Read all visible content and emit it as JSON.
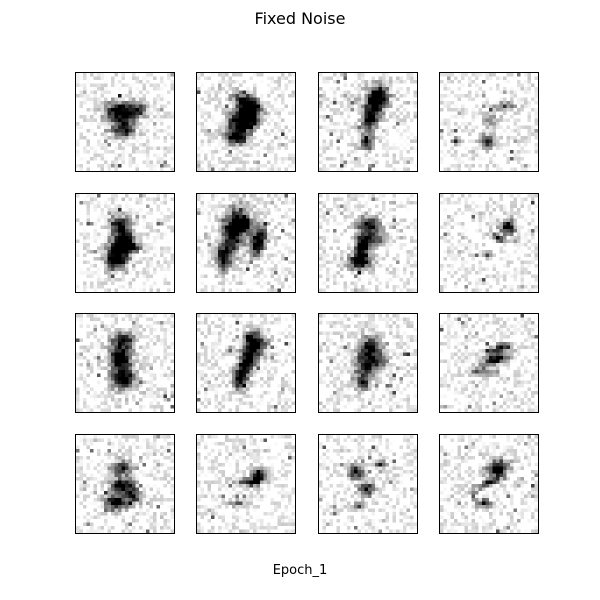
{
  "figure": {
    "title": "Fixed Noise",
    "footer": "Epoch_1"
  },
  "grid": {
    "rows": 4,
    "cols": 4,
    "tiles": [
      {
        "row": 0,
        "col": 0,
        "name": "sample-r1-c1"
      },
      {
        "row": 0,
        "col": 1,
        "name": "sample-r1-c2"
      },
      {
        "row": 0,
        "col": 2,
        "name": "sample-r1-c3"
      },
      {
        "row": 0,
        "col": 3,
        "name": "sample-r1-c4"
      },
      {
        "row": 1,
        "col": 0,
        "name": "sample-r2-c1"
      },
      {
        "row": 1,
        "col": 1,
        "name": "sample-r2-c2"
      },
      {
        "row": 1,
        "col": 2,
        "name": "sample-r2-c3"
      },
      {
        "row": 1,
        "col": 3,
        "name": "sample-r2-c4"
      },
      {
        "row": 2,
        "col": 0,
        "name": "sample-r3-c1"
      },
      {
        "row": 2,
        "col": 1,
        "name": "sample-r3-c2"
      },
      {
        "row": 2,
        "col": 2,
        "name": "sample-r3-c3"
      },
      {
        "row": 2,
        "col": 3,
        "name": "sample-r3-c4"
      },
      {
        "row": 3,
        "col": 0,
        "name": "sample-r4-c1"
      },
      {
        "row": 3,
        "col": 1,
        "name": "sample-r4-c2"
      },
      {
        "row": 3,
        "col": 2,
        "name": "sample-r4-c3"
      },
      {
        "row": 3,
        "col": 3,
        "name": "sample-r4-c4"
      }
    ]
  },
  "colors": {
    "ink": "#000000",
    "background": "#ffffff",
    "frame": "#000000"
  }
}
